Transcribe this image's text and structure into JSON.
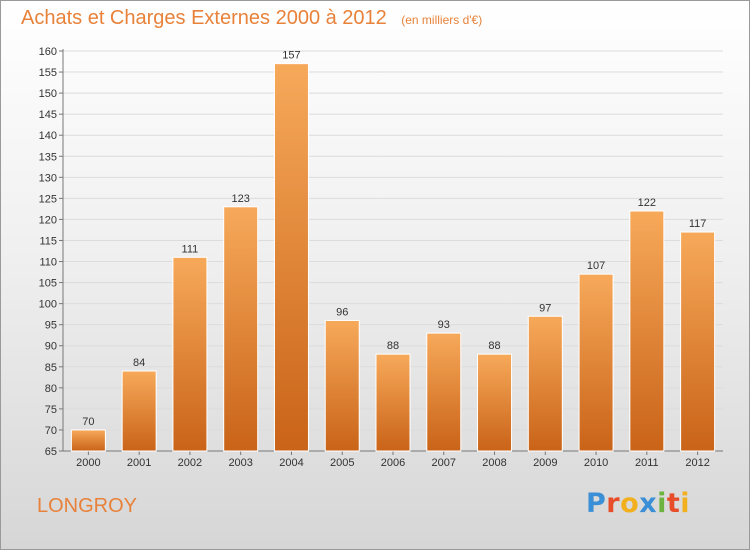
{
  "header": {
    "title": "Achats et Charges Externes 2000 à 2012",
    "subtitle": "(en milliers d'€)"
  },
  "footer": {
    "town": "LONGROY",
    "logo_letters": [
      {
        "ch": "P",
        "color": "#3a8fd6"
      },
      {
        "ch": "r",
        "color": "#e84d2a"
      },
      {
        "ch": "o",
        "color": "#f2b01e"
      },
      {
        "ch": "x",
        "color": "#3a8fd6"
      },
      {
        "ch": "i",
        "color": "#6cb33f"
      },
      {
        "ch": "t",
        "color": "#e84d2a"
      },
      {
        "ch": "i",
        "color": "#f2b01e"
      }
    ]
  },
  "chart_data": {
    "type": "bar",
    "title": "Achats et Charges Externes 2000 à 2012",
    "subtitle": "(en milliers d'€)",
    "categories": [
      "2000",
      "2001",
      "2002",
      "2003",
      "2004",
      "2005",
      "2006",
      "2007",
      "2008",
      "2009",
      "2010",
      "2011",
      "2012"
    ],
    "values": [
      70,
      84,
      111,
      123,
      157,
      96,
      88,
      93,
      88,
      97,
      107,
      122,
      117
    ],
    "xlabel": "",
    "ylabel": "",
    "ylim": [
      65,
      160
    ],
    "ytick_step": 5,
    "grid": true,
    "bar_color": "#f0913e",
    "bar_color_light": "#f7a95a",
    "bar_color_dark": "#c96318"
  }
}
